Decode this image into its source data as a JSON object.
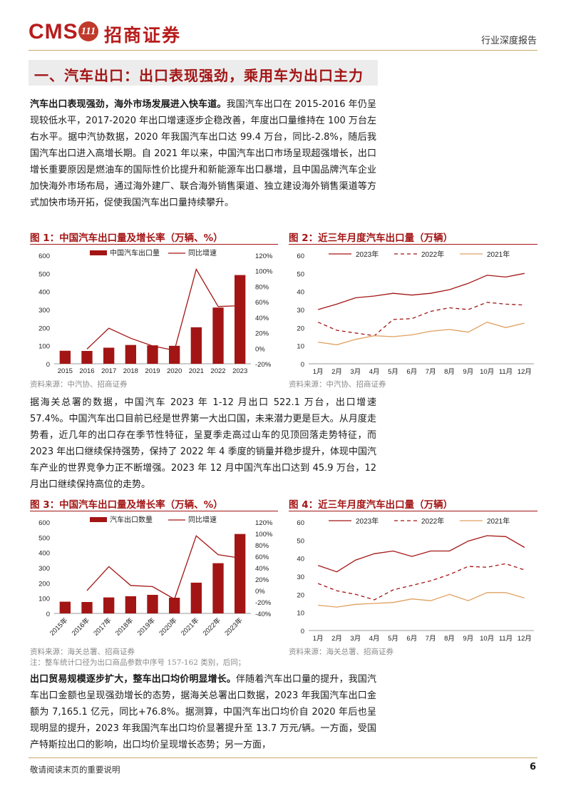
{
  "header": {
    "logo_text": "CMS",
    "logo_badge": "111",
    "logo_cn": "招商证券",
    "report_type": "行业深度报告"
  },
  "section": {
    "title": "一、汽车出口：出口表现强劲，乘用车为出口主力"
  },
  "para1": {
    "lead": "汽车出口表现强劲，海外市场发展进入快车道。",
    "body": "我国汽车出口在 2015-2016 年仍呈现较低水平，2017-2020 年出口增速逐步企稳改善，年度出口量维持在 100 万台左右水平。据中汽协数据，2020 年我国汽车出口达 99.4 万台，同比-2.8%，随后我国汽车出口进入高增长期。自 2021 年以来，中国汽车出口市场呈现超强增长，出口增长重要原因是燃油车的国际性价比提升和新能源车出口暴增，且中国品牌汽车企业加快海外市场布局，通过海外建厂、联合海外销售渠道、独立建设海外销售渠道等方式加快市场开拓，促使我国汽车出口量持续攀升。"
  },
  "para2": {
    "body": "据海关总署的数据，中国汽车 2023 年 1-12 月出口 522.1 万台，出口增速 57.4%。中国汽车出口目前已经是世界第一大出口国，未来潜力更是巨大。从月度走势看，近几年的出口存在季节性特征，呈夏季走高过山车的见顶回落走势特征，而 2023 年出口继续保持强势，保持了 2022 年 4 季度的销量并稳步提升，体现中国汽车产业的世界竞争力正不断增强。2023 年 12 月中国汽车出口达到 45.9 万台，12 月出口继续保持高位的走势。"
  },
  "para3": {
    "lead": "出口贸易规模逐步扩大，整车出口均价明显增长。",
    "body": "伴随着汽车出口量的提升，我国汽车出口金额也呈现强劲增长的态势，据海关总署出口数据，2023 年我国汽车出口金额为 7,165.1 亿元，同比+76.8%。据测算，中国汽车出口均价自 2020 年后也呈现明显的提升，2023 年我国汽车出口均价显著提升至 13.7 万元/辆。一方面，受国产特斯拉出口的影响，出口均价呈现增长态势；另一方面，"
  },
  "figures": {
    "fig1_title": "图 1：中国汽车出口量及增长率（万辆、%）",
    "fig1_source": "资料来源：中汽协、招商证券",
    "fig2_title": "图 2：近三年月度汽车出口量（万辆）",
    "fig2_source": "资料来源：中汽协、招商证券",
    "fig3_title": "图 3：中国汽车出口量及增长率（万辆、%）",
    "fig3_source": "资料来源：海关总署、招商证券",
    "fig3_note": "注：整车统计口径为出口商品参数中序号 157-162 类别，后同；",
    "fig4_title": "图 4：近三年月度汽车出口量（万辆）",
    "fig4_source": "资料来源：海关总署、招商证券"
  },
  "footer": {
    "text": "敬请阅读末页的重要说明",
    "page": "6"
  },
  "colors": {
    "bar": "#a31515",
    "line2023": "#a31515",
    "line2022": "#a31515",
    "line2021": "#e0a060"
  },
  "chart_data": [
    {
      "type": "bar",
      "id": "fig1",
      "categories": [
        "2015",
        "2016",
        "2017",
        "2018",
        "2019",
        "2020",
        "2021",
        "2022",
        "2023"
      ],
      "series": [
        {
          "name": "中国汽车出口量",
          "type": "bar",
          "axis": "left",
          "values": [
            72,
            71,
            89,
            104,
            102,
            99.4,
            202,
            311,
            491
          ]
        },
        {
          "name": "同比增速",
          "type": "line",
          "axis": "right",
          "values": [
            null,
            -1,
            26,
            13,
            3,
            -2.8,
            102,
            54,
            55
          ]
        }
      ],
      "ylim": [
        0,
        600
      ],
      "yticks": [
        0,
        100,
        200,
        300,
        400,
        500,
        600
      ],
      "y2lim": [
        -20,
        120
      ],
      "y2ticks": [
        "-20%",
        "0%",
        "20%",
        "40%",
        "60%",
        "80%",
        "100%",
        "120%"
      ],
      "legend_position": "top"
    },
    {
      "type": "line",
      "id": "fig2",
      "categories": [
        "1月",
        "2月",
        "3月",
        "4月",
        "5月",
        "6月",
        "7月",
        "8月",
        "9月",
        "10月",
        "11月",
        "12月"
      ],
      "series": [
        {
          "name": "2023年",
          "style": "solid",
          "values": [
            30,
            33,
            36.5,
            37.5,
            39,
            38,
            39,
            41,
            44.5,
            49,
            48,
            50
          ]
        },
        {
          "name": "2022年",
          "style": "dashed",
          "values": [
            23,
            18.5,
            17,
            15.5,
            24.5,
            25,
            29,
            31,
            30,
            34,
            33,
            32.5
          ]
        },
        {
          "name": "2021年",
          "style": "solid",
          "values": [
            12,
            10.5,
            13.5,
            15.5,
            15,
            16,
            18,
            19,
            17.5,
            23,
            20,
            22.5
          ]
        }
      ],
      "ylim": [
        0,
        60
      ],
      "yticks": [
        0,
        10,
        20,
        30,
        40,
        50,
        60
      ],
      "legend_position": "top"
    },
    {
      "type": "bar",
      "id": "fig3",
      "categories": [
        "2015年",
        "2016年",
        "2017年",
        "2018年",
        "2019年",
        "2020年",
        "2021年",
        "2022年",
        "2023年"
      ],
      "series": [
        {
          "name": "汽车出口数量",
          "type": "bar",
          "axis": "left",
          "values": [
            77,
            75,
            105,
            113,
            122,
            103,
            202,
            330,
            522
          ]
        },
        {
          "name": "同比增速",
          "type": "line",
          "axis": "right",
          "values": [
            null,
            0,
            42,
            9,
            7,
            -15,
            96,
            63,
            57
          ]
        }
      ],
      "ylim": [
        0,
        600
      ],
      "yticks": [
        0,
        100,
        200,
        300,
        400,
        500,
        600
      ],
      "y2lim": [
        -40,
        120
      ],
      "y2ticks": [
        "-40%",
        "-20%",
        "0%",
        "20%",
        "40%",
        "60%",
        "80%",
        "100%",
        "120%"
      ],
      "legend_position": "top"
    },
    {
      "type": "line",
      "id": "fig4",
      "categories": [
        "1月",
        "2月",
        "3月",
        "4月",
        "5月",
        "6月",
        "7月",
        "8月",
        "9月",
        "10月",
        "11月",
        "12月"
      ],
      "series": [
        {
          "name": "2023年",
          "style": "solid",
          "values": [
            36,
            32.5,
            39,
            42.5,
            44,
            41,
            44,
            44,
            49.5,
            52.5,
            52,
            46
          ]
        },
        {
          "name": "2022年",
          "style": "dashed",
          "values": [
            26,
            22,
            20,
            17,
            22.5,
            25,
            27.5,
            31,
            35.5,
            35,
            37,
            33.5
          ]
        },
        {
          "name": "2021年",
          "style": "solid",
          "values": [
            14,
            13,
            14.5,
            15,
            15.5,
            17.5,
            16.5,
            20,
            16.5,
            21,
            21,
            18
          ]
        }
      ],
      "ylim": [
        0,
        60
      ],
      "yticks": [
        0,
        10,
        20,
        30,
        40,
        50,
        60
      ],
      "legend_position": "top"
    }
  ]
}
